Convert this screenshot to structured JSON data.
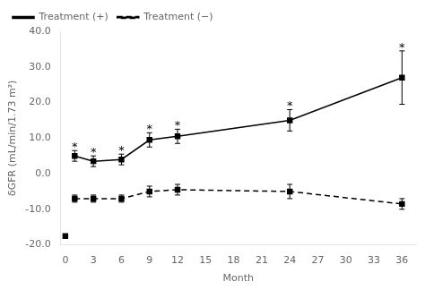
{
  "chart_data": {
    "type": "line",
    "xlabel": "Month",
    "ylabel": "δGFR (mL/min/1.73 m²)",
    "xlim": [
      -0.5,
      37.5
    ],
    "xticks": [
      0,
      3,
      6,
      9,
      12,
      15,
      18,
      21,
      24,
      27,
      30,
      33,
      36
    ],
    "ylim": [
      -20.0,
      40.0
    ],
    "yticks": [
      {
        "value": -20.0,
        "label": "-20.0"
      },
      {
        "value": -10.0,
        "label": "-10.0"
      },
      {
        "value": 0.0,
        "label": "0.0"
      },
      {
        "value": 10.0,
        "label": "10.0"
      },
      {
        "value": 20.0,
        "label": "20.0"
      },
      {
        "value": 30.0,
        "label": "30.0"
      },
      {
        "value": 40.0,
        "label": "40.0"
      }
    ],
    "grid": false,
    "legend": "upper left",
    "series": [
      {
        "color": "#000000",
        "marker": "square",
        "line_style": "none",
        "x": [
          0
        ],
        "values": [
          -17.5
        ]
      },
      {
        "name": "Treatment (+)",
        "color": "#000000",
        "marker": "square",
        "line_style": "solid",
        "x": [
          1,
          3,
          6,
          9,
          12,
          24,
          36
        ],
        "values": [
          5.0,
          3.5,
          4.0,
          9.5,
          10.5,
          15.0,
          27.0
        ],
        "errors": [
          1.5,
          1.5,
          1.5,
          2.0,
          2.0,
          3.0,
          7.5
        ],
        "annotations": [
          {
            "x": 1,
            "text": "*"
          },
          {
            "x": 3,
            "text": "*"
          },
          {
            "x": 6,
            "text": "*"
          },
          {
            "x": 9,
            "text": "*"
          },
          {
            "x": 12,
            "text": "*"
          },
          {
            "x": 24,
            "text": "*"
          },
          {
            "x": 36,
            "text": "*"
          }
        ]
      },
      {
        "name": "Treatment (−)",
        "color": "#000000",
        "marker": "square",
        "line_style": "dashed",
        "x": [
          1,
          3,
          6,
          9,
          12,
          24,
          36
        ],
        "values": [
          -7.0,
          -7.0,
          -7.0,
          -5.0,
          -4.5,
          -5.0,
          -8.5
        ],
        "errors": [
          1.0,
          1.0,
          1.0,
          1.5,
          1.5,
          2.0,
          1.5
        ]
      }
    ]
  }
}
